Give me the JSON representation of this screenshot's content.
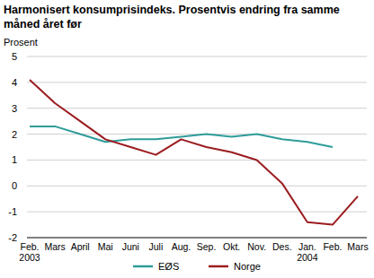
{
  "chart_data": {
    "type": "line",
    "title": "Harmonisert konsumprisindeks. Prosentvis endring fra samme måned året før",
    "y_label": "Prosent",
    "categories": [
      "Feb. 2003",
      "Mars",
      "April",
      "Mai",
      "Juni",
      "Juli",
      "Aug.",
      "Sep.",
      "Okt.",
      "Nov.",
      "Des.",
      "Jan. 2004",
      "Feb.",
      "Mars"
    ],
    "series": [
      {
        "name": "EØS",
        "color": "#2e9c9a",
        "values": [
          2.3,
          2.3,
          2.0,
          1.7,
          1.8,
          1.8,
          1.9,
          2.0,
          1.9,
          2.0,
          1.8,
          1.7,
          1.5,
          null
        ]
      },
      {
        "name": "Norge",
        "color": "#9b1c1f",
        "values": [
          4.1,
          3.2,
          2.5,
          1.8,
          1.5,
          1.2,
          1.8,
          1.5,
          1.3,
          1.0,
          0.1,
          -1.4,
          -1.5,
          -0.4
        ]
      }
    ],
    "ylim": [
      -2,
      5
    ],
    "yticks": [
      -2,
      -1,
      0,
      1,
      2,
      3,
      4,
      5
    ],
    "grid": true,
    "legend": "bottom"
  }
}
